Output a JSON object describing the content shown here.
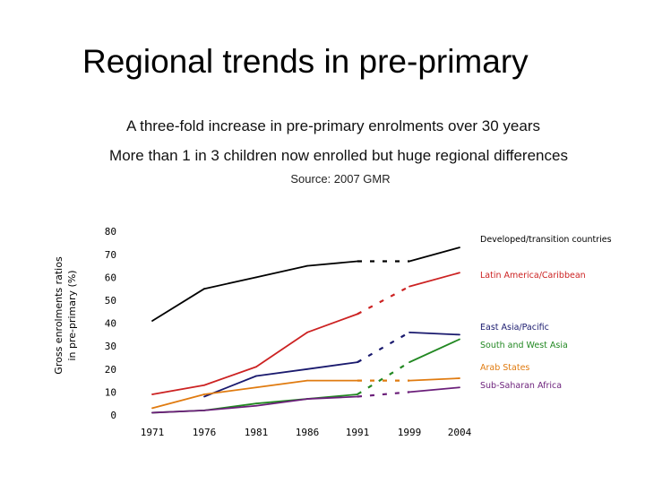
{
  "page": {
    "title": "Regional trends in pre-primary",
    "subtitle1": "A three-fold increase in pre-primary enrolments over 30 years",
    "subtitle2": "More than 1 in 3 children now enrolled  but huge regional differences",
    "source": "Source: 2007 GMR"
  },
  "chart_data": {
    "type": "line",
    "title": "Regional trends in pre-primary",
    "xlabel": "",
    "ylabel_line1": "Gross enrolments ratios",
    "ylabel_line2": "in pre-primary (%)",
    "categories": [
      "1971",
      "1976",
      "1981",
      "1986",
      "1991",
      "1999",
      "2004"
    ],
    "ylim": [
      0,
      80
    ],
    "yticks": [
      "0",
      "10",
      "20",
      "30",
      "40",
      "50",
      "60",
      "70",
      "80"
    ],
    "gap_note": "segment between 1991 and 1999 drawn dashed",
    "series": [
      {
        "name": "Developed/transition countries",
        "color": "#000000",
        "values": [
          41,
          55,
          60,
          65,
          67,
          67,
          73
        ]
      },
      {
        "name": "Latin America/Caribbean",
        "color": "#cc2222",
        "values": [
          9,
          13,
          21,
          36,
          44,
          56,
          62
        ]
      },
      {
        "name": "East Asia/Pacific",
        "color": "#1a1a6e",
        "values": [
          null,
          8,
          17,
          20,
          23,
          36,
          35
        ]
      },
      {
        "name": "South and West Asia",
        "color": "#228822",
        "values": [
          1,
          2,
          5,
          7,
          9,
          23,
          33
        ]
      },
      {
        "name": "Arab States",
        "color": "#e07b10",
        "values": [
          3,
          9,
          12,
          15,
          15,
          15,
          16
        ]
      },
      {
        "name": "Sub-Saharan Africa",
        "color": "#6b1f7a",
        "values": [
          1,
          2,
          4,
          7,
          8,
          10,
          12
        ]
      }
    ]
  }
}
